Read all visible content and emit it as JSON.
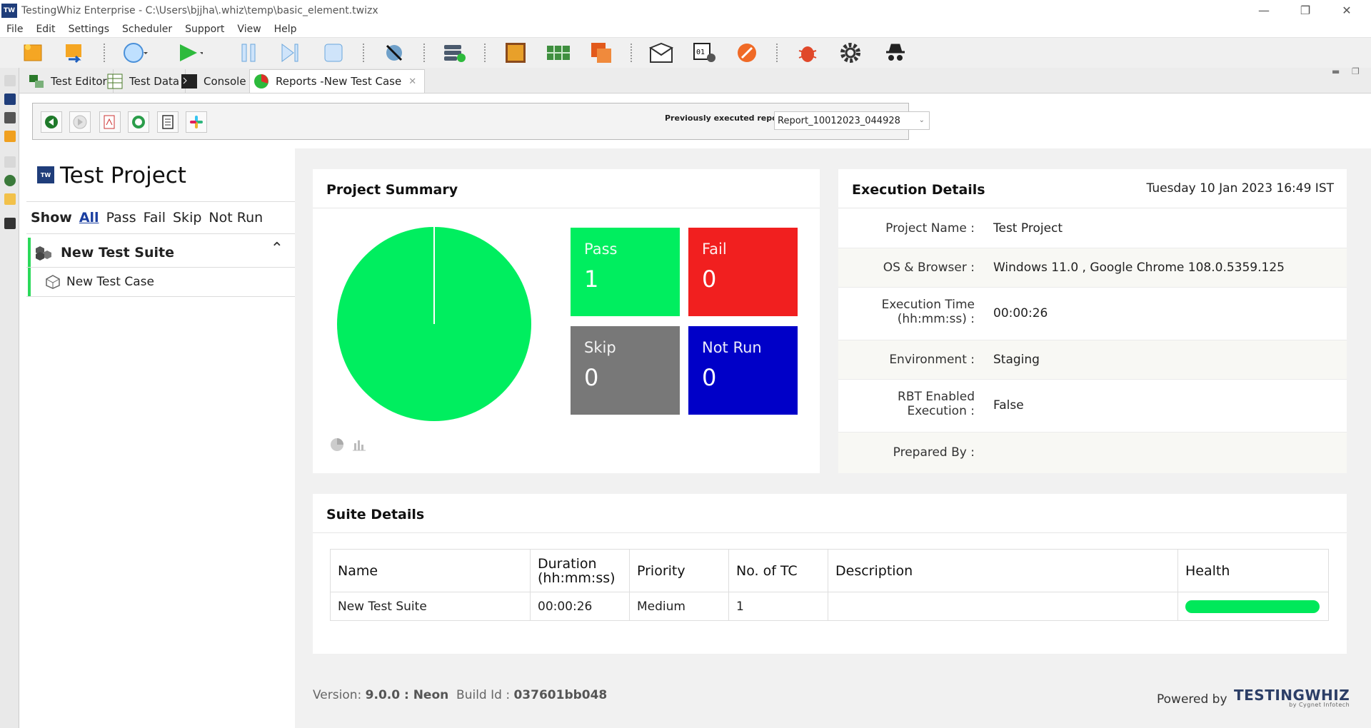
{
  "window": {
    "title": "TestingWhiz Enterprise - C:\\Users\\bjjha\\.whiz\\temp\\basic_element.twizx",
    "app_icon_text": "TW"
  },
  "menu": [
    "File",
    "Edit",
    "Settings",
    "Scheduler",
    "Support",
    "View",
    "Help"
  ],
  "toolbar_icons": [
    "new-file",
    "import",
    "record",
    "run",
    "pause",
    "step",
    "stop",
    "browser-check",
    "run-config",
    "image",
    "data-table",
    "report-export",
    "email",
    "variables",
    "bug-track-orange",
    "bug",
    "settings",
    "incognito"
  ],
  "tabs": [
    {
      "label": "Test Editor"
    },
    {
      "label": "Test Data"
    },
    {
      "label": "Console"
    },
    {
      "label": "Reports  -New Test Case"
    }
  ],
  "report_toolbar": {
    "previously_label": "Previously executed reports:",
    "selected_report": "Report_10012023_044928"
  },
  "left_panel": {
    "title": "Test Project",
    "logo_text": "TW",
    "filters": {
      "show": "Show",
      "all": "All",
      "pass": "Pass",
      "fail": "Fail",
      "skip": "Skip",
      "not_run": "Not Run"
    },
    "suite": "New Test Suite",
    "test_case": "New Test Case"
  },
  "project_summary": {
    "title": "Project Summary",
    "boxes": [
      {
        "label": "Pass",
        "value": "1",
        "color": "#00ee5f"
      },
      {
        "label": "Fail",
        "value": "0",
        "color": "#f11f1f"
      },
      {
        "label": "Skip",
        "value": "0",
        "color": "#787878"
      },
      {
        "label": "Not Run",
        "value": "0",
        "color": "#0000c8"
      }
    ]
  },
  "chart_data": {
    "type": "pie",
    "categories": [
      "Pass",
      "Fail",
      "Skip",
      "Not Run"
    ],
    "values": [
      1,
      0,
      0,
      0
    ],
    "colors": [
      "#00ee5f",
      "#f11f1f",
      "#787878",
      "#0000c8"
    ],
    "title": ""
  },
  "execution_details": {
    "title": "Execution Details",
    "datetime": "Tuesday 10 Jan 2023 16:49 IST",
    "rows": [
      {
        "key": "Project Name :",
        "value": "Test Project"
      },
      {
        "key": "OS & Browser :",
        "value": "Windows 11.0 , Google Chrome 108.0.5359.125"
      },
      {
        "key": "Execution Time",
        "key2": "(hh:mm:ss) :",
        "value": "00:00:26"
      },
      {
        "key": "Environment :",
        "value": "Staging"
      },
      {
        "key": "RBT Enabled",
        "key2": "Execution :",
        "value": "False"
      },
      {
        "key": "Prepared By :",
        "value": ""
      }
    ]
  },
  "suite_details": {
    "title": "Suite Details",
    "columns": [
      "Name",
      "Duration",
      "(hh:mm:ss)",
      "Priority",
      "No. of TC",
      "Description",
      "Health"
    ],
    "rows": [
      {
        "name": "New Test Suite",
        "duration": "00:00:26",
        "priority": "Medium",
        "tc": "1",
        "description": "",
        "health": 1.0
      }
    ]
  },
  "footer": {
    "version_prefix": "Version: ",
    "version": "9.0.0 : Neon",
    "build_prefix": "  Build Id : ",
    "build": "037601bb048",
    "powered": "Powered by",
    "brand": "TESTINGWHIZ",
    "brand_sub": "by Cygnet Infotech"
  }
}
